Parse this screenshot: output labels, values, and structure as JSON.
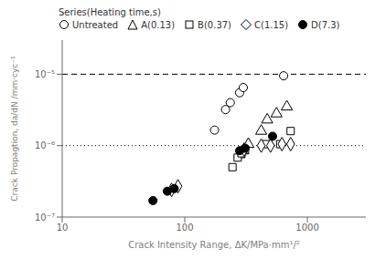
{
  "chart_data": {
    "type": "scatter",
    "xlabel": "Crack Intensity Range, ΔK/MPa·mm¹/²",
    "ylabel": "Crack Propagtion, da/dN /mm·cyc⁻¹",
    "log": true,
    "xlim": [
      10,
      3000
    ],
    "ylim": [
      1e-07,
      3e-05
    ],
    "xticks": [
      10,
      100,
      1000
    ],
    "yticks": [
      {
        "value": 1e-07,
        "label": "10⁻⁷"
      },
      {
        "value": 1e-06,
        "label": "10⁻⁶"
      },
      {
        "value": 1e-05,
        "label": "10⁻⁵"
      }
    ],
    "grid": false,
    "legend": "upper left",
    "legend_title": "Series(Heating time,s)",
    "reference_lines": [
      {
        "y": 1e-05,
        "line_style": "dashed"
      },
      {
        "y": 1e-06,
        "line_style": "dotted"
      }
    ],
    "series": [
      {
        "name": "Untreated",
        "marker": "circle",
        "color": "white",
        "x": [
          175,
          215,
          235,
          280,
          300,
          640
        ],
        "values": [
          1.65e-06,
          3.2e-06,
          4e-06,
          5.5e-06,
          6.5e-06,
          9.5e-06
        ]
      },
      {
        "name": "A(0.13)",
        "marker": "triangle",
        "color": "white",
        "x": [
          280,
          300,
          330,
          420,
          470,
          560,
          680
        ],
        "values": [
          7.5e-07,
          8.5e-07,
          1.05e-06,
          1.6e-06,
          2.3e-06,
          2.8e-06,
          3.5e-06
        ]
      },
      {
        "name": "B(0.37)",
        "marker": "square",
        "color": "white",
        "x": [
          245,
          270,
          290,
          310,
          460,
          600,
          730
        ],
        "values": [
          5e-07,
          6.8e-07,
          7.8e-07,
          8.8e-07,
          1.05e-06,
          1.05e-06,
          1.6e-06
        ]
      },
      {
        "name": "C(1.15)",
        "marker": "diamond",
        "color": "white",
        "x": [
          78,
          88,
          305,
          420,
          500,
          620,
          730
        ],
        "values": [
          2.4e-07,
          2.7e-07,
          8.8e-07,
          1e-06,
          1e-06,
          1.05e-06,
          1.05e-06
        ]
      },
      {
        "name": "D(7.3)",
        "marker": "circle",
        "color": "black",
        "x": [
          55,
          72,
          82,
          280,
          310,
          520
        ],
        "values": [
          1.7e-07,
          2.3e-07,
          2.5e-07,
          8.5e-07,
          9.2e-07,
          1.35e-06
        ]
      }
    ]
  }
}
